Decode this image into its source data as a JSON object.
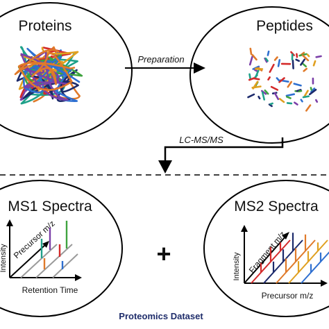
{
  "nodes": {
    "proteins": "Proteins",
    "peptides": "Peptides",
    "ms1": "MS1 Spectra",
    "ms2": "MS2 Spectra"
  },
  "edges": {
    "preparation": "Preparation",
    "lcmsms": "LC-MS/MS"
  },
  "ms1_axes": {
    "y": "Intensity",
    "z": "Precursor m/z",
    "x": "Retention Time"
  },
  "ms2_axes": {
    "y": "Intensity",
    "z": "Fragment m/z",
    "x": "Precursor m/z"
  },
  "plus_sign": "+",
  "dataset_label": "Proteomics Dataset",
  "colors": {
    "dataset_label": "#1f2d6b",
    "strands": [
      "#2e6fd0",
      "#7b3fa8",
      "#e07a2a",
      "#1fa18a",
      "#d42a2a",
      "#1c2a6b",
      "#3fa33f",
      "#e0a020"
    ]
  }
}
